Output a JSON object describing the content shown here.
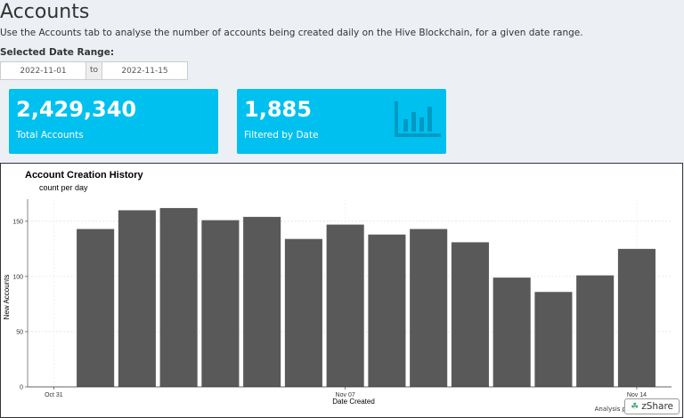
{
  "page": {
    "title": "Accounts",
    "intro": "Use the Accounts tab to analyse the number of accounts being created daily on the Hive Blockchain, for a given date range.",
    "range_label": "Selected Date Range:"
  },
  "date_range": {
    "start": "2022-11-01",
    "separator": "to",
    "end": "2022-11-15"
  },
  "value_boxes": {
    "total": {
      "value": "2,429,340",
      "label": "Total Accounts"
    },
    "filtered": {
      "value": "1,885",
      "label": "Filtered by Date",
      "icon": "bar-chart-icon"
    }
  },
  "colors": {
    "accent": "#00c0ef",
    "bar": "#595959",
    "background": "#ecf0f5"
  },
  "chart_data": {
    "type": "bar",
    "title": "Account Creation History",
    "subtitle": "count per day",
    "xlabel": "Date Created",
    "ylabel": "New Accounts",
    "x": [
      "2022-11-01",
      "2022-11-02",
      "2022-11-03",
      "2022-11-04",
      "2022-11-05",
      "2022-11-06",
      "2022-11-07",
      "2022-11-08",
      "2022-11-09",
      "2022-11-10",
      "2022-11-11",
      "2022-11-12",
      "2022-11-13",
      "2022-11-14"
    ],
    "values": [
      143,
      160,
      162,
      151,
      154,
      134,
      147,
      138,
      143,
      131,
      99,
      86,
      101,
      125
    ],
    "x_ticks": [
      {
        "date": "2022-10-31",
        "label": "Oct 31"
      },
      {
        "date": "2022-11-07",
        "label": "Nov 07"
      },
      {
        "date": "2022-11-14",
        "label": "Nov 14"
      }
    ],
    "y_ticks": [
      0,
      50,
      100,
      150
    ],
    "xlim": [
      "2022-10-31",
      "2022-11-15"
    ],
    "ylim": [
      0,
      170
    ],
    "grid": true
  },
  "footer": {
    "attribution": "Analysis pr",
    "share_label": "zShare"
  }
}
